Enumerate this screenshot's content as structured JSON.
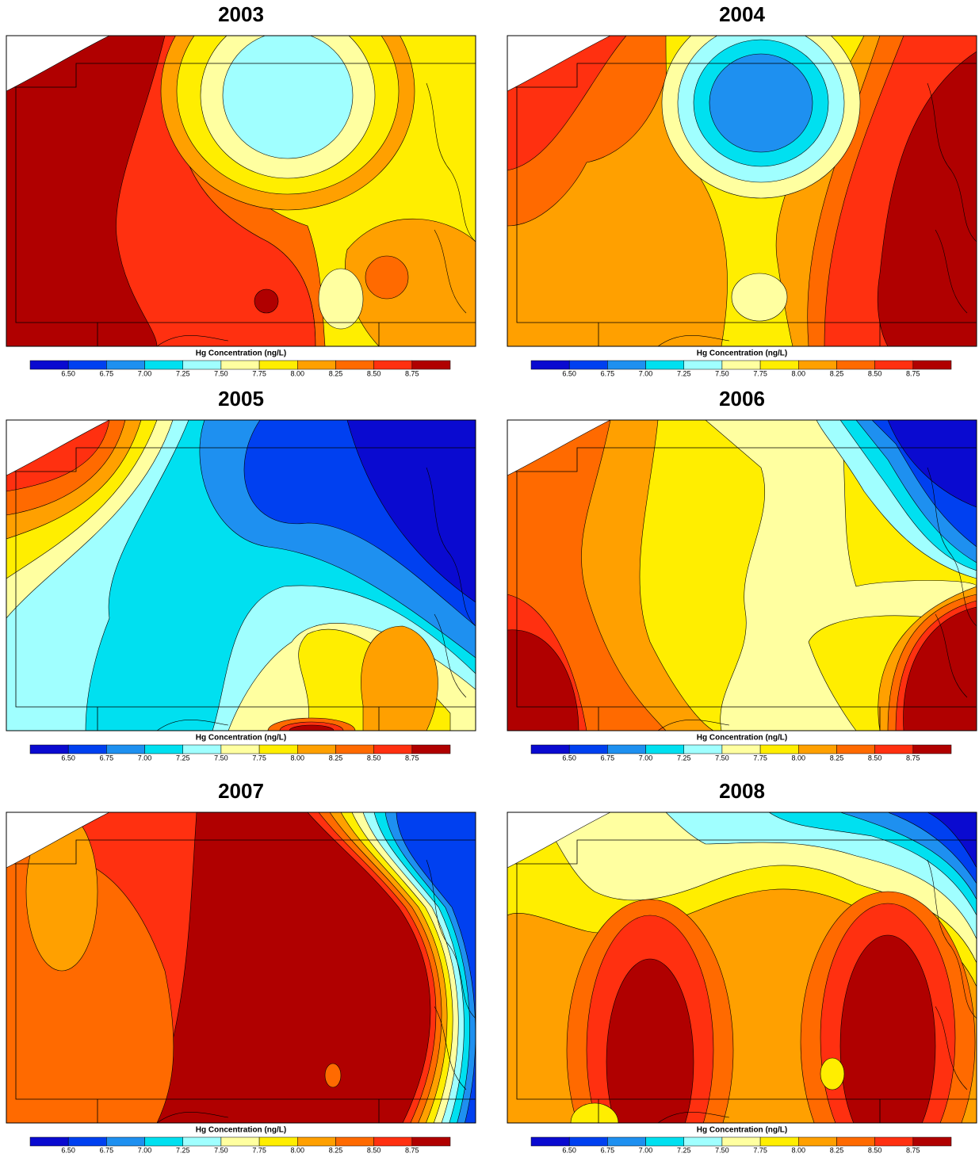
{
  "panels": [
    {
      "title": "2003"
    },
    {
      "title": "2004"
    },
    {
      "title": "2005"
    },
    {
      "title": "2006"
    },
    {
      "title": "2007"
    },
    {
      "title": "2008"
    }
  ],
  "colorbar": {
    "label": "Hg Concentration (ng/L)",
    "ticks": [
      "6.50",
      "6.75",
      "7.00",
      "7.25",
      "7.50",
      "7.75",
      "8.00",
      "8.25",
      "8.50",
      "8.75"
    ],
    "colors": [
      "#0a0ad0",
      "#0040f0",
      "#1e90f0",
      "#00e0f0",
      "#a0ffff",
      "#ffffa0",
      "#ffee00",
      "#ffa000",
      "#ff6a00",
      "#ff3010",
      "#b00000"
    ]
  }
}
